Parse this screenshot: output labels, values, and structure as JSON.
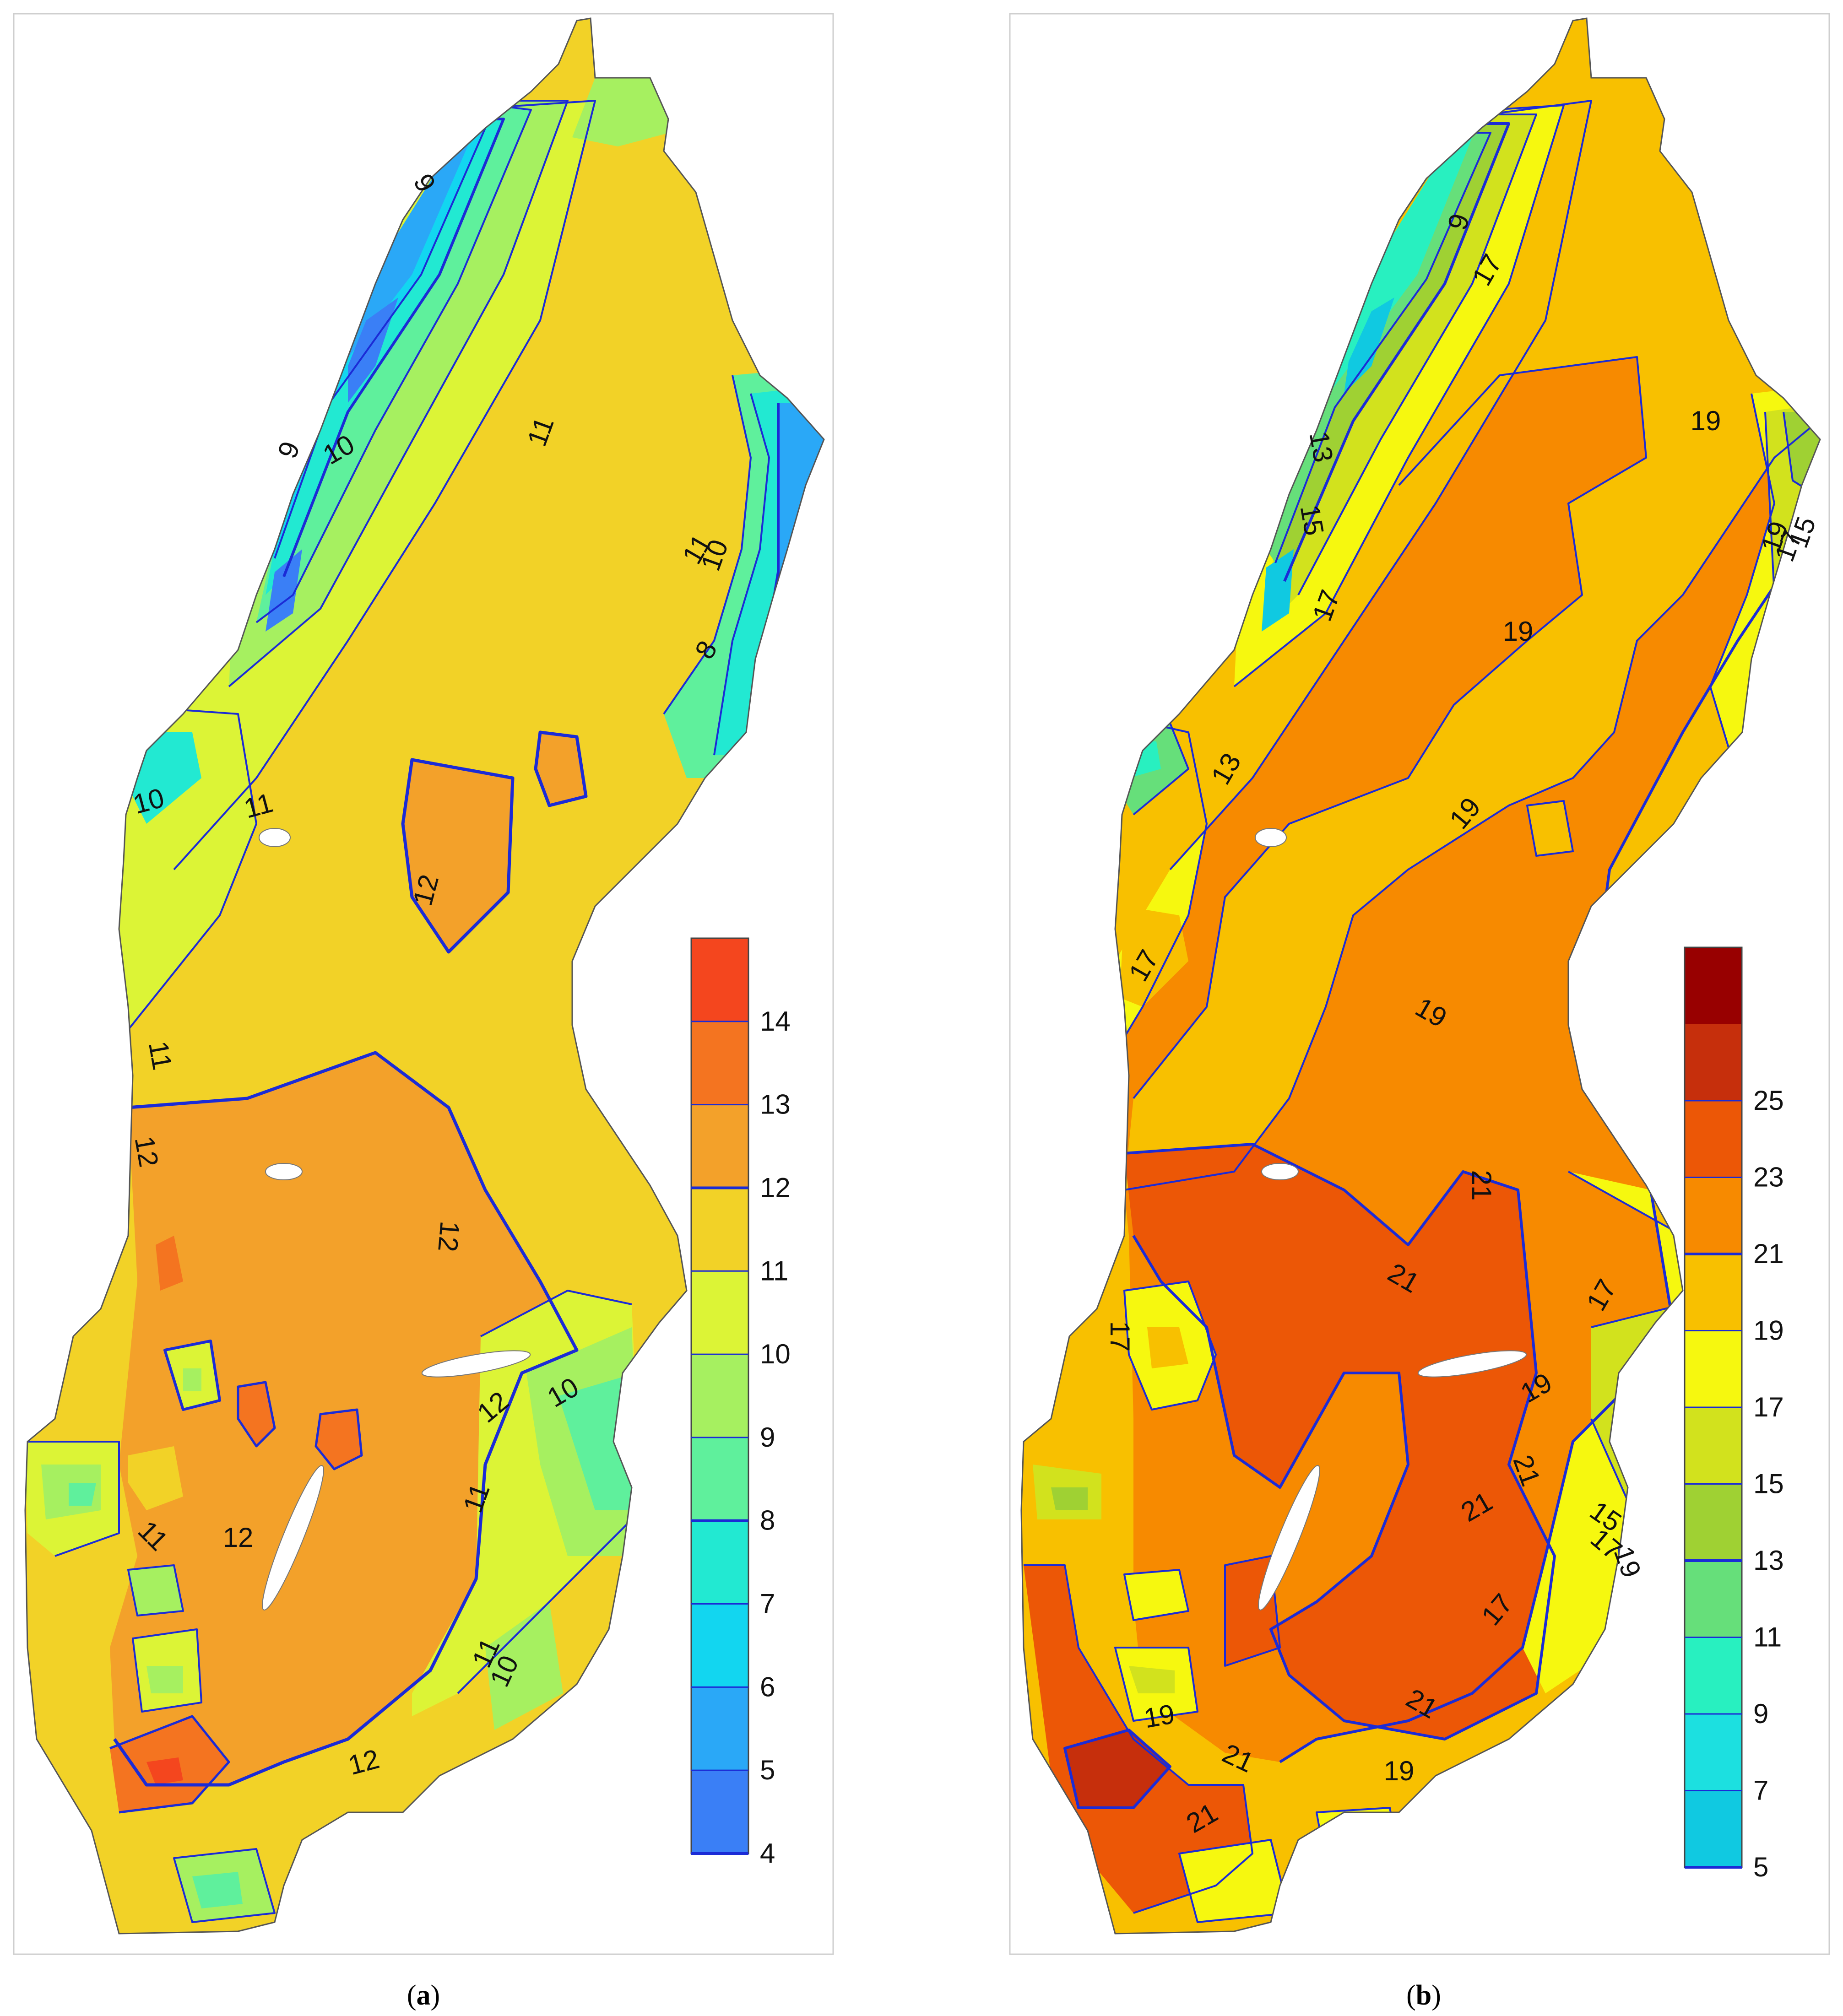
{
  "panels": [
    {
      "id": "a",
      "caption_letter": "a",
      "legend": {
        "levels": [
          4,
          5,
          6,
          7,
          8,
          9,
          10,
          11,
          12,
          13,
          14
        ],
        "colors": [
          "#3a7ff6",
          "#2aa8f7",
          "#12d6f0",
          "#22e9d2",
          "#5ff09c",
          "#a6f060",
          "#dcf436",
          "#f2d227",
          "#f3a12a",
          "#f47420",
          "#f4461e"
        ]
      },
      "contour_labels": [
        {
          "text": "9",
          "rot": 60
        },
        {
          "text": "10",
          "rot": -30
        },
        {
          "text": "9",
          "rot": -70
        },
        {
          "text": "11",
          "rot": -70
        },
        {
          "text": "11",
          "rot": -60
        },
        {
          "text": "10",
          "rot": -70
        },
        {
          "text": "8",
          "rot": -60
        },
        {
          "text": "10",
          "rot": -15
        },
        {
          "text": "11",
          "rot": -15
        },
        {
          "text": "12",
          "rot": -75
        },
        {
          "text": "11",
          "rot": 80
        },
        {
          "text": "12",
          "rot": 80
        },
        {
          "text": "12",
          "rot": 95
        },
        {
          "text": "12",
          "rot": -40
        },
        {
          "text": "10",
          "rot": -30
        },
        {
          "text": "11",
          "rot": -70
        },
        {
          "text": "11",
          "rot": 45
        },
        {
          "text": "12",
          "rot": 0
        },
        {
          "text": "11",
          "rot": -65
        },
        {
          "text": "10",
          "rot": -65
        },
        {
          "text": "12",
          "rot": -15
        }
      ]
    },
    {
      "id": "b",
      "caption_letter": "b",
      "legend": {
        "levels": [
          5,
          7,
          9,
          11,
          13,
          15,
          17,
          19,
          21,
          23,
          25
        ],
        "colors": [
          "#10c9e1",
          "#1ce0e0",
          "#28f0c0",
          "#66df7a",
          "#9fd133",
          "#d2e21d",
          "#f6f80f",
          "#f8c000",
          "#f78a00",
          "#ec5706",
          "#c62f0c",
          "#980000"
        ]
      },
      "contour_labels": [
        {
          "text": "9",
          "rot": -75
        },
        {
          "text": "17",
          "rot": -60
        },
        {
          "text": "13",
          "rot": 80
        },
        {
          "text": "15",
          "rot": 80
        },
        {
          "text": "17",
          "rot": -70
        },
        {
          "text": "19",
          "rot": 0
        },
        {
          "text": "19",
          "rot": 0
        },
        {
          "text": "19",
          "rot": -70
        },
        {
          "text": "17",
          "rot": -70
        },
        {
          "text": "15",
          "rot": -70
        },
        {
          "text": "13",
          "rot": -60
        },
        {
          "text": "19",
          "rot": -50
        },
        {
          "text": "17",
          "rot": -60
        },
        {
          "text": "19",
          "rot": 30
        },
        {
          "text": "21",
          "rot": 30
        },
        {
          "text": "21",
          "rot": 90
        },
        {
          "text": "17",
          "rot": 90
        },
        {
          "text": "17",
          "rot": -60
        },
        {
          "text": "19",
          "rot": -30
        },
        {
          "text": "21",
          "rot": 70
        },
        {
          "text": "21",
          "rot": -30
        },
        {
          "text": "15",
          "rot": 35
        },
        {
          "text": "17",
          "rot": 40
        },
        {
          "text": "19",
          "rot": 70
        },
        {
          "text": "17",
          "rot": -50
        },
        {
          "text": "21",
          "rot": 30
        },
        {
          "text": "19",
          "rot": -10
        },
        {
          "text": "19",
          "rot": 0
        },
        {
          "text": "21",
          "rot": 25
        },
        {
          "text": "21",
          "rot": -30
        }
      ]
    }
  ]
}
